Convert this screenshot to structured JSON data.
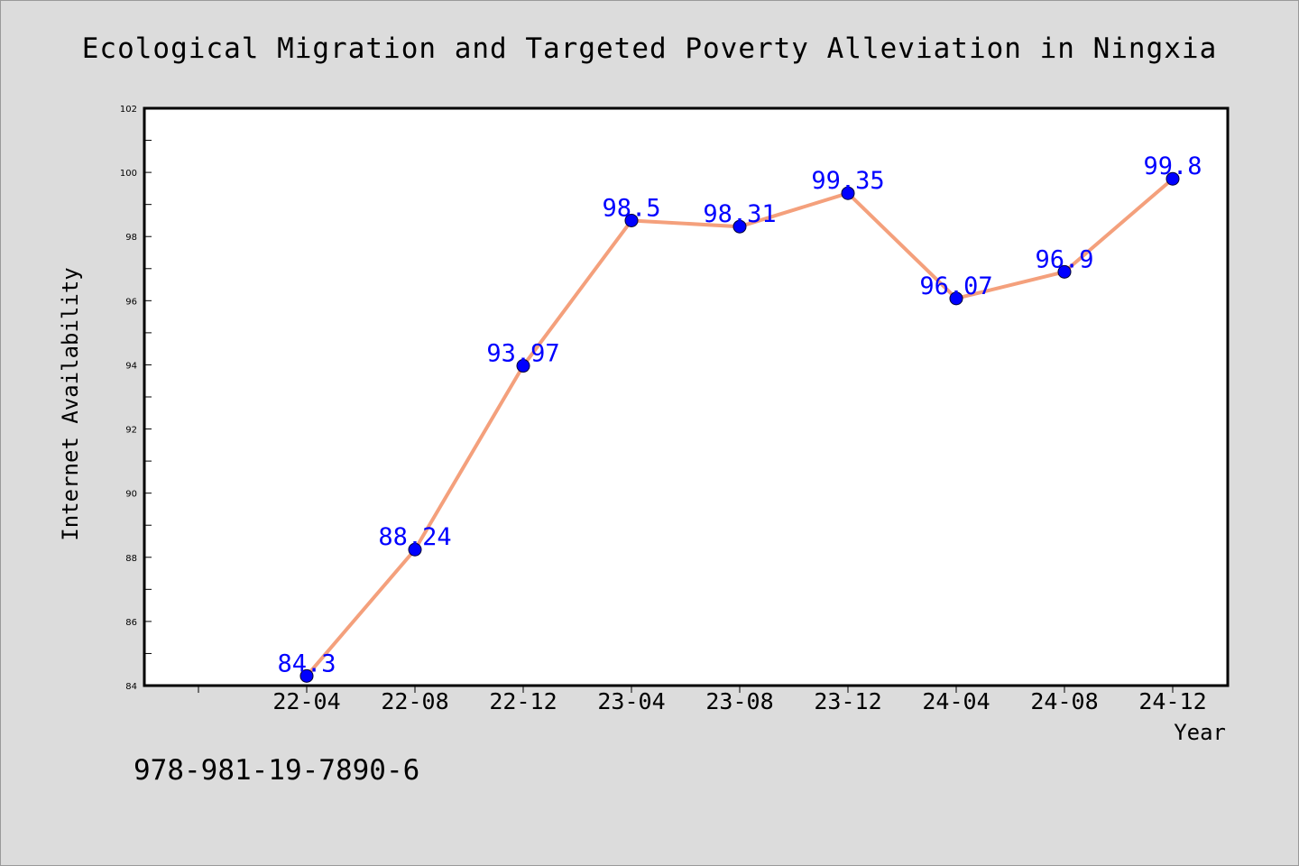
{
  "chart_data": {
    "type": "line",
    "title": "Ecological Migration and Targeted Poverty Alleviation in Ningxia",
    "xlabel": "Year",
    "ylabel": "Internet Availability",
    "categories": [
      "22-04",
      "22-08",
      "22-12",
      "23-04",
      "23-08",
      "23-12",
      "24-04",
      "24-08",
      "24-12"
    ],
    "series": [
      {
        "values": [
          84.3,
          88.24,
          93.97,
          98.5,
          98.31,
          99.35,
          96.07,
          96.9,
          99.8
        ],
        "labels": [
          "84.3",
          "88.24",
          "93.97",
          "98.5",
          "98.31",
          "99.35",
          "96.07",
          "96.9",
          "99.8"
        ],
        "line_color": "#f4a07c",
        "marker_color": "#0000ff"
      }
    ],
    "ylim": [
      84,
      102
    ],
    "yticks": [
      84,
      86,
      88,
      90,
      92,
      94,
      96,
      98,
      100,
      102
    ],
    "grid": false,
    "legend": "none"
  },
  "footer": {
    "isbn": "978-981-19-7890-6"
  },
  "colors": {
    "background": "#dcdcdc",
    "plot_background": "#ffffff",
    "line": "#f4a07c",
    "marker": "#0000ff",
    "data_label": "#0000ff"
  }
}
